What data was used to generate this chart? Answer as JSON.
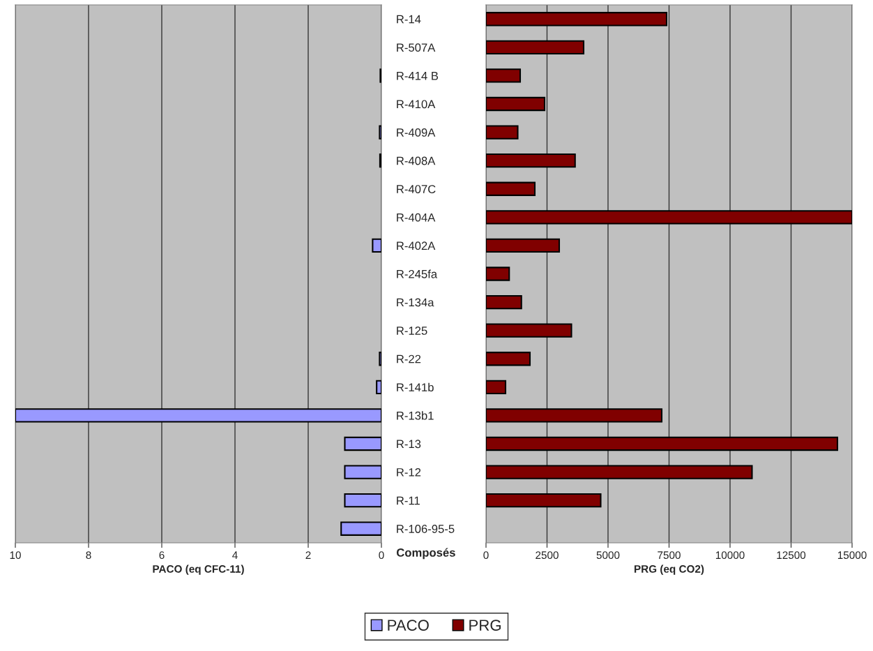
{
  "chart_data": [
    {
      "type": "bar",
      "orientation": "horizontal",
      "xlabel": "PACO (eq CFC-11)",
      "ylabel": "Composés",
      "categories": [
        "R-14",
        "R-507A",
        "R-414 B",
        "R-410A",
        "R-409A",
        "R-408A",
        "R-407C",
        "R-404A",
        "R-402A",
        "R-245fa",
        "R-134a",
        "R-125",
        "R-22",
        "R-141b",
        "R-13b1",
        "R-13",
        "R-12",
        "R-11",
        "R-106-95-5"
      ],
      "series": [
        {
          "name": "PACO",
          "color": "#9999ff",
          "values": [
            null,
            null,
            0.03,
            null,
            0.05,
            0.04,
            null,
            null,
            0.24,
            null,
            null,
            null,
            0.05,
            0.13,
            10,
            1,
            1,
            1,
            1.1
          ]
        }
      ],
      "xlim": [
        10,
        0
      ],
      "xticks": [
        10,
        8,
        6,
        4,
        2,
        0
      ],
      "grid": "x",
      "legend": "bottom"
    },
    {
      "type": "bar",
      "orientation": "horizontal",
      "xlabel": "PRG (eq CO2)",
      "categories": [
        null,
        null,
        null,
        null,
        null,
        null,
        null,
        null,
        null,
        null,
        null,
        null,
        null,
        null,
        null,
        null,
        null,
        null,
        null
      ],
      "series": [
        {
          "name": "PRG",
          "color": "#800000",
          "values": [
            7400,
            4000,
            1400,
            2400,
            1300,
            3650,
            2000,
            15000,
            3000,
            950,
            1450,
            3500,
            1800,
            800,
            7200,
            14400,
            10900,
            4700,
            null
          ]
        }
      ],
      "xlim": [
        0,
        15000
      ],
      "xticks": [
        0,
        2500,
        5000,
        7500,
        10000,
        12500,
        15000
      ],
      "grid": "x",
      "legend": "bottom",
      "tick_labels": "x"
    }
  ]
}
